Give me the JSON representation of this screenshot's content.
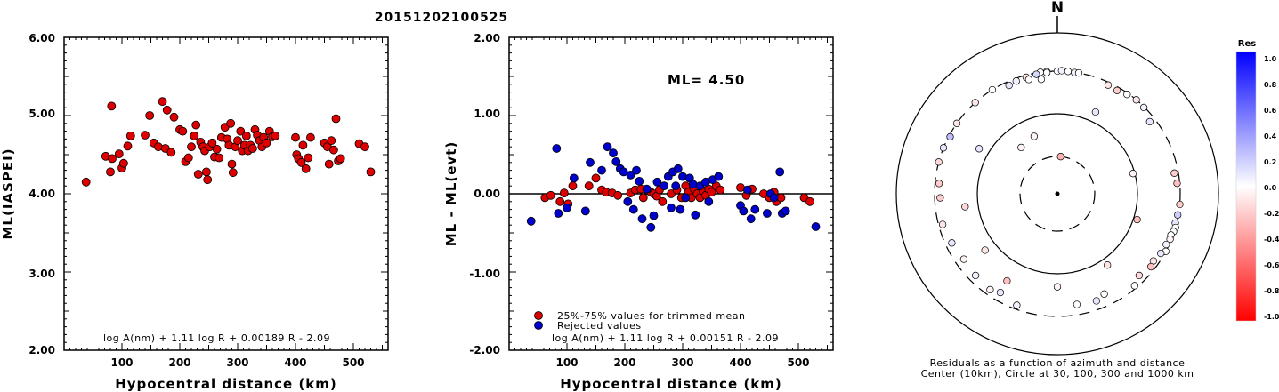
{
  "page_title": "20151202100525",
  "chart_data": [
    {
      "type": "scatter",
      "title": "",
      "xlabel": "Hypocentral distance (km)",
      "ylabel": "ML(IASPEI)",
      "xlim": [
        0,
        560
      ],
      "ylim": [
        2.0,
        6.0
      ],
      "xticks": [
        "100",
        "200",
        "300",
        "400",
        "500"
      ],
      "yticks": [
        "2.00",
        "3.00",
        "4.00",
        "5.00",
        "6.00"
      ],
      "formula": "log A(nm) + 1.11 log R + 0.00189 R - 2.09",
      "marker_color": "#dd0000",
      "points": [
        [
          38,
          4.15
        ],
        [
          72,
          4.48
        ],
        [
          80,
          4.28
        ],
        [
          82,
          5.12
        ],
        [
          83,
          4.45
        ],
        [
          95,
          4.51
        ],
        [
          100,
          4.33
        ],
        [
          103,
          4.39
        ],
        [
          110,
          4.61
        ],
        [
          115,
          4.74
        ],
        [
          140,
          4.75
        ],
        [
          148,
          5.0
        ],
        [
          155,
          4.65
        ],
        [
          163,
          4.6
        ],
        [
          170,
          5.18
        ],
        [
          175,
          4.58
        ],
        [
          178,
          5.07
        ],
        [
          185,
          4.53
        ],
        [
          190,
          4.98
        ],
        [
          200,
          4.82
        ],
        [
          205,
          4.8
        ],
        [
          210,
          4.41
        ],
        [
          215,
          4.46
        ],
        [
          220,
          4.6
        ],
        [
          225,
          4.74
        ],
        [
          228,
          4.88
        ],
        [
          232,
          4.25
        ],
        [
          236,
          4.66
        ],
        [
          240,
          4.6
        ],
        [
          243,
          4.55
        ],
        [
          246,
          4.28
        ],
        [
          248,
          4.18
        ],
        [
          252,
          4.6
        ],
        [
          256,
          4.65
        ],
        [
          260,
          4.47
        ],
        [
          264,
          4.57
        ],
        [
          268,
          4.46
        ],
        [
          272,
          4.72
        ],
        [
          278,
          4.85
        ],
        [
          282,
          4.7
        ],
        [
          285,
          4.62
        ],
        [
          288,
          4.9
        ],
        [
          290,
          4.38
        ],
        [
          292,
          4.27
        ],
        [
          296,
          4.6
        ],
        [
          300,
          4.68
        ],
        [
          305,
          4.8
        ],
        [
          308,
          4.55
        ],
        [
          312,
          4.62
        ],
        [
          315,
          4.74
        ],
        [
          318,
          4.55
        ],
        [
          322,
          4.62
        ],
        [
          326,
          4.58
        ],
        [
          330,
          4.82
        ],
        [
          334,
          4.75
        ],
        [
          338,
          4.68
        ],
        [
          342,
          4.6
        ],
        [
          345,
          4.72
        ],
        [
          350,
          4.65
        ],
        [
          355,
          4.8
        ],
        [
          360,
          4.73
        ],
        [
          365,
          4.74
        ],
        [
          400,
          4.72
        ],
        [
          402,
          4.5
        ],
        [
          405,
          4.45
        ],
        [
          410,
          4.4
        ],
        [
          413,
          4.62
        ],
        [
          418,
          4.32
        ],
        [
          422,
          4.46
        ],
        [
          426,
          4.72
        ],
        [
          450,
          4.65
        ],
        [
          455,
          4.6
        ],
        [
          458,
          4.38
        ],
        [
          462,
          4.68
        ],
        [
          466,
          4.56
        ],
        [
          470,
          4.96
        ],
        [
          474,
          4.42
        ],
        [
          478,
          4.45
        ],
        [
          510,
          4.64
        ],
        [
          520,
          4.6
        ],
        [
          530,
          4.28
        ]
      ]
    },
    {
      "type": "scatter",
      "title": "",
      "xlabel": "Hypocentral distance (km)",
      "ylabel": "ML - ML(evt)",
      "xlim": [
        0,
        560
      ],
      "ylim": [
        -2.0,
        2.0
      ],
      "xticks": [
        "100",
        "200",
        "300",
        "400",
        "500"
      ],
      "yticks": [
        "-2.00",
        "-1.00",
        "0.00",
        "1.00",
        "2.00"
      ],
      "annotation": "ML= 4.50",
      "formula": "log A(nm) + 1.11 log R + 0.00151 R - 2.09",
      "legend": [
        "25%-75% values for trimmed mean",
        "Rejected values"
      ],
      "series": [
        {
          "name": "25%-75% values for trimmed mean",
          "color": "#dd0000",
          "points": [
            [
              62,
              -0.05
            ],
            [
              72,
              -0.02
            ],
            [
              88,
              -0.1
            ],
            [
              95,
              0.01
            ],
            [
              102,
              -0.13
            ],
            [
              110,
              0.1
            ],
            [
              138,
              0.1
            ],
            [
              150,
              0.2
            ],
            [
              160,
              0.05
            ],
            [
              168,
              0.02
            ],
            [
              178,
              0.01
            ],
            [
              188,
              -0.02
            ],
            [
              210,
              0.01
            ],
            [
              218,
              0.05
            ],
            [
              228,
              0.06
            ],
            [
              232,
              -0.05
            ],
            [
              240,
              0.04
            ],
            [
              245,
              0.02
            ],
            [
              250,
              0.0
            ],
            [
              255,
              -0.03
            ],
            [
              260,
              0.05
            ],
            [
              265,
              -0.1
            ],
            [
              280,
              0.0
            ],
            [
              290,
              0.05
            ],
            [
              298,
              -0.05
            ],
            [
              305,
              0.1
            ],
            [
              310,
              0.02
            ],
            [
              315,
              -0.05
            ],
            [
              320,
              0.06
            ],
            [
              325,
              0.0
            ],
            [
              330,
              -0.05
            ],
            [
              335,
              0.04
            ],
            [
              340,
              -0.02
            ],
            [
              345,
              0.06
            ],
            [
              350,
              0.02
            ],
            [
              358,
              0.1
            ],
            [
              365,
              0.05
            ],
            [
              400,
              0.08
            ],
            [
              410,
              -0.02
            ],
            [
              420,
              0.06
            ],
            [
              440,
              0.0
            ],
            [
              450,
              -0.05
            ],
            [
              458,
              0.02
            ],
            [
              462,
              -0.1
            ],
            [
              470,
              -0.05
            ],
            [
              510,
              -0.05
            ],
            [
              520,
              -0.1
            ]
          ]
        },
        {
          "name": "Rejected values",
          "color": "#0000cc",
          "points": [
            [
              38,
              -0.35
            ],
            [
              82,
              0.58
            ],
            [
              85,
              -0.25
            ],
            [
              100,
              -0.18
            ],
            [
              112,
              0.2
            ],
            [
              132,
              -0.22
            ],
            [
              140,
              0.4
            ],
            [
              160,
              0.3
            ],
            [
              170,
              0.6
            ],
            [
              180,
              0.52
            ],
            [
              185,
              0.41
            ],
            [
              192,
              0.32
            ],
            [
              198,
              0.28
            ],
            [
              205,
              -0.1
            ],
            [
              210,
              0.24
            ],
            [
              215,
              -0.2
            ],
            [
              220,
              0.3
            ],
            [
              225,
              0.16
            ],
            [
              230,
              -0.32
            ],
            [
              238,
              0.06
            ],
            [
              245,
              -0.43
            ],
            [
              250,
              -0.28
            ],
            [
              256,
              0.15
            ],
            [
              268,
              0.1
            ],
            [
              275,
              0.22
            ],
            [
              280,
              -0.18
            ],
            [
              283,
              0.28
            ],
            [
              288,
              0.1
            ],
            [
              292,
              0.32
            ],
            [
              296,
              -0.2
            ],
            [
              300,
              0.22
            ],
            [
              305,
              -0.05
            ],
            [
              312,
              0.2
            ],
            [
              318,
              0.12
            ],
            [
              322,
              -0.27
            ],
            [
              330,
              0.1
            ],
            [
              340,
              0.15
            ],
            [
              345,
              -0.1
            ],
            [
              352,
              0.18
            ],
            [
              362,
              0.22
            ],
            [
              400,
              -0.15
            ],
            [
              405,
              -0.22
            ],
            [
              412,
              0.05
            ],
            [
              418,
              -0.32
            ],
            [
              425,
              -0.2
            ],
            [
              446,
              -0.25
            ],
            [
              452,
              0.0
            ],
            [
              458,
              -0.05
            ],
            [
              468,
              0.28
            ],
            [
              472,
              -0.25
            ],
            [
              478,
              -0.22
            ],
            [
              530,
              -0.42
            ]
          ]
        }
      ]
    },
    {
      "type": "scatter",
      "title": "N",
      "caption_lines": [
        "Residuals as a function of azimuth and distance",
        "Center (10km), Circle at 30, 100, 300 and 1000 km"
      ],
      "colorbar": {
        "label": "Res",
        "ticks": [
          "1.0",
          "0.8",
          "0.6",
          "0.4",
          "0.2",
          "0.0",
          "-0.2",
          "-0.4",
          "-0.6",
          "-0.8",
          "-1.0"
        ]
      },
      "points_az_dist_res": [
        [
          5,
          30,
          -0.3
        ],
        [
          322,
          55,
          -0.05
        ],
        [
          338,
          60,
          -0.05
        ],
        [
          25,
          130,
          0.1
        ],
        [
          75,
          95,
          -0.05
        ],
        [
          108,
          110,
          -0.25
        ],
        [
          145,
          120,
          -0.1
        ],
        [
          180,
          140,
          -0.05
        ],
        [
          210,
          170,
          -0.25
        ],
        [
          232,
          135,
          -0.1
        ],
        [
          262,
          140,
          -0.15
        ],
        [
          300,
          130,
          0.1
        ],
        [
          355,
          300,
          -0.1
        ],
        [
          0,
          300,
          0.0
        ],
        [
          2,
          305,
          0.05
        ],
        [
          5,
          302,
          0.0
        ],
        [
          8,
          298,
          0.05
        ],
        [
          10,
          300,
          0.0
        ],
        [
          352,
          300,
          0.0
        ],
        [
          355,
          292,
          0.0
        ],
        [
          350,
          290,
          0.15
        ],
        [
          345,
          285,
          -0.1
        ],
        [
          340,
          280,
          0.05
        ],
        [
          336,
          270,
          0.1
        ],
        [
          346,
          265,
          0.0
        ],
        [
          352,
          250,
          0.0
        ],
        [
          25,
          280,
          -0.1
        ],
        [
          30,
          275,
          -0.2
        ],
        [
          35,
          290,
          0.0
        ],
        [
          40,
          300,
          -0.1
        ],
        [
          45,
          295,
          0.05
        ],
        [
          52,
          260,
          0.1
        ],
        [
          85,
          280,
          -0.25
        ],
        [
          80,
          270,
          -0.2
        ],
        [
          95,
          300,
          -0.2
        ],
        [
          100,
          295,
          0.2
        ],
        [
          104,
          290,
          0.1
        ],
        [
          106,
          300,
          0.0
        ],
        [
          108,
          295,
          0.0
        ],
        [
          110,
          285,
          0.0
        ],
        [
          112,
          290,
          -0.05
        ],
        [
          115,
          280,
          0.05
        ],
        [
          118,
          300,
          0.0
        ],
        [
          120,
          275,
          0.1
        ],
        [
          125,
          260,
          -0.1
        ],
        [
          135,
          250,
          -0.15
        ],
        [
          155,
          220,
          0.0
        ],
        [
          170,
          230,
          0.0
        ],
        [
          200,
          270,
          0.05
        ],
        [
          210,
          240,
          0.1
        ],
        [
          215,
          260,
          -0.05
        ],
        [
          225,
          250,
          0.05
        ],
        [
          235,
          240,
          -0.05
        ],
        [
          245,
          255,
          0.1
        ],
        [
          255,
          270,
          -0.1
        ],
        [
          268,
          260,
          -0.2
        ],
        [
          275,
          270,
          -0.2
        ],
        [
          285,
          300,
          -0.15
        ],
        [
          292,
          300,
          0.1
        ],
        [
          298,
          290,
          0.25
        ],
        [
          305,
          300,
          -0.1
        ],
        [
          318,
          300,
          -0.1
        ],
        [
          328,
          300,
          0.0
        ],
        [
          128,
          270,
          -0.25
        ],
        [
          140,
          280,
          0.0
        ],
        [
          160,
          240,
          0.1
        ]
      ]
    }
  ]
}
